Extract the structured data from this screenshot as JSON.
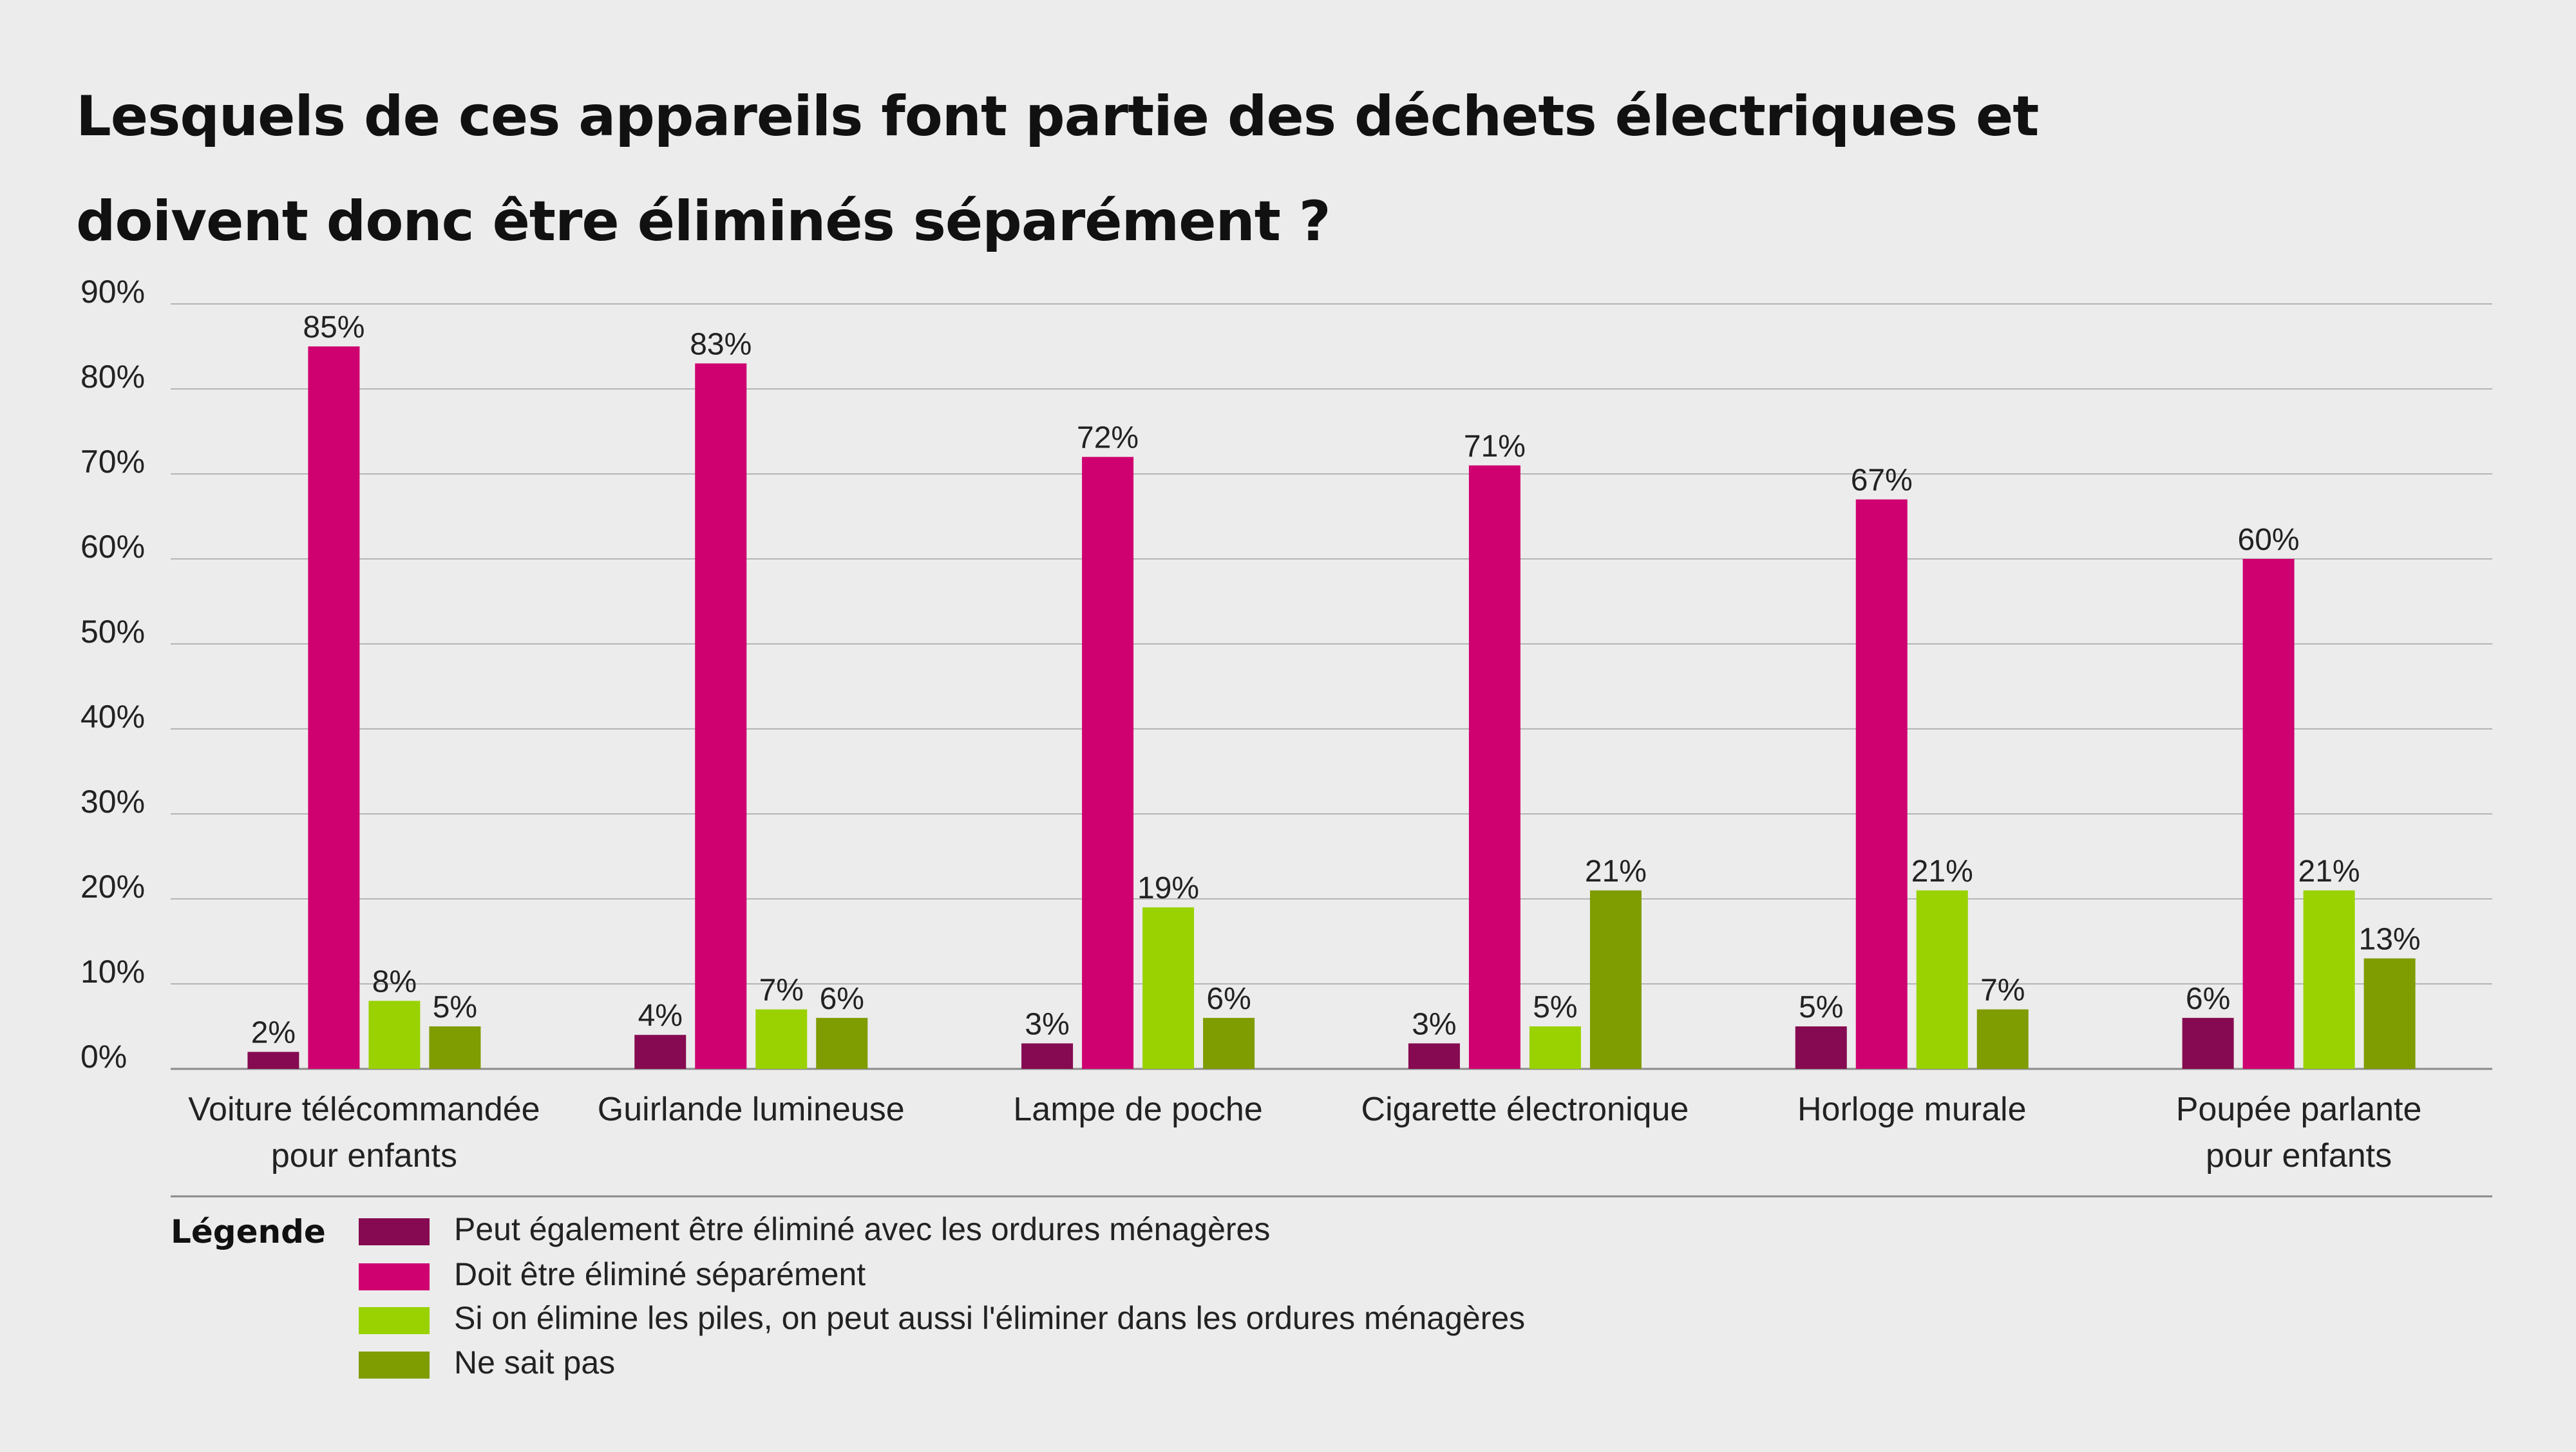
{
  "title": "Lesquels de ces appareils font partie des déchets électriques et doivent donc être éliminés séparément ?",
  "legend_label": "Légende",
  "colors": {
    "dark_magenta": "#860a51",
    "magenta": "#cf0070",
    "light_green": "#99d200",
    "olive_green": "#7f9c00",
    "background": "#ececec",
    "grid": "#b5b5b5"
  },
  "chart_data": {
    "type": "bar",
    "title": "Lesquels de ces appareils font partie des déchets électriques et doivent donc être éliminés séparément ?",
    "xlabel": "",
    "ylabel": "",
    "ylim": [
      0,
      90
    ],
    "yticks": [
      "0%",
      "10%",
      "20%",
      "30%",
      "40%",
      "50%",
      "60%",
      "70%",
      "80%",
      "90%"
    ],
    "grid": true,
    "legend_position": "bottom",
    "categories": [
      [
        "Voiture télécommandée",
        "pour enfants"
      ],
      [
        "Guirlande lumineuse"
      ],
      [
        "Lampe de poche"
      ],
      [
        "Cigarette électronique"
      ],
      [
        "Horloge murale"
      ],
      [
        "Poupée parlante",
        "pour enfants"
      ]
    ],
    "series": [
      {
        "name": "Peut également être éliminé avec les ordures ménagères",
        "color": "#860a51",
        "values": [
          2,
          4,
          3,
          3,
          5,
          6
        ],
        "labels": [
          "2%",
          "4%",
          "3%",
          "3%",
          "5%",
          "6%"
        ]
      },
      {
        "name": "Doit être éliminé séparément",
        "color": "#cf0070",
        "values": [
          85,
          83,
          72,
          71,
          67,
          60
        ],
        "labels": [
          "85%",
          "83%",
          "72%",
          "71%",
          "67%",
          "60%"
        ]
      },
      {
        "name": "Si on élimine les piles, on peut aussi l'éliminer dans les ordures ménagères",
        "color": "#99d200",
        "values": [
          8,
          7,
          19,
          5,
          21,
          21
        ],
        "labels": [
          "8%",
          "7%",
          "19%",
          "5%",
          "21%",
          "21%"
        ]
      },
      {
        "name": "Ne sait pas",
        "color": "#7f9c00",
        "values": [
          5,
          6,
          6,
          21,
          7,
          13
        ],
        "labels": [
          "5%",
          "6%",
          "6%",
          "21%",
          "7%",
          "13%"
        ]
      }
    ]
  }
}
